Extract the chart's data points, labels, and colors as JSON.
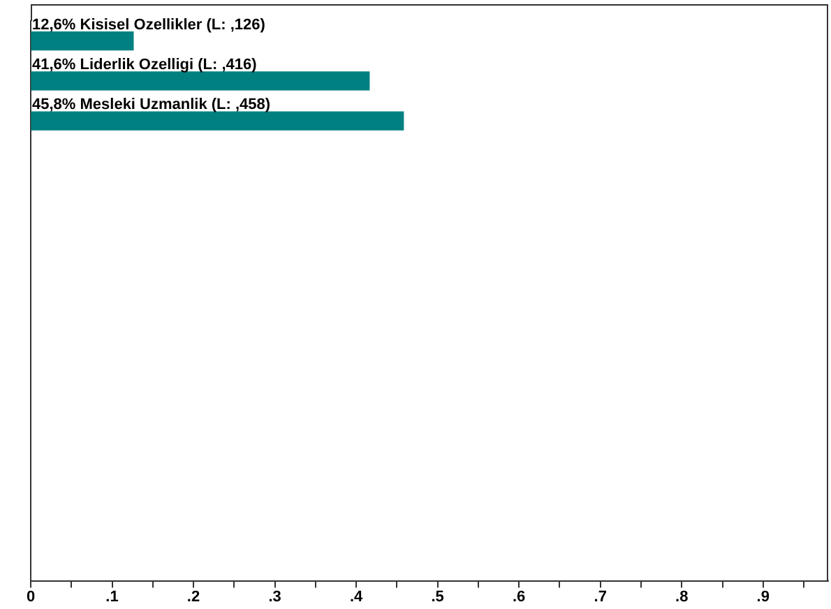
{
  "chart_data": {
    "type": "bar",
    "orientation": "horizontal",
    "categories": [
      null,
      null,
      null,
      null,
      null,
      null,
      null,
      null,
      null,
      null,
      null,
      null,
      null,
      null
    ],
    "values": [
      0.126,
      0.416,
      0.458,
      null,
      null,
      null,
      null,
      null,
      null,
      null,
      null,
      null,
      null,
      null
    ],
    "color": "#008080",
    "value_labels": [
      "12,6% Kisisel Ozellikler (L: ,126)",
      "41,6% Liderlik Ozelligi (L: ,416)",
      "45,8% Mesleki Uzmanlik (L: ,458)",
      null,
      null,
      null,
      null,
      null,
      null,
      null,
      null,
      null,
      null,
      null
    ],
    "xlim": [
      0,
      0.98
    ],
    "xticks": [
      {
        "value": 0,
        "label": "0"
      },
      {
        "value": 0.05,
        "label": null
      },
      {
        "value": 0.1,
        "label": ".1"
      },
      {
        "value": 0.15,
        "label": null
      },
      {
        "value": 0.2,
        "label": ".2"
      },
      {
        "value": 0.25,
        "label": null
      },
      {
        "value": 0.3,
        "label": ".3"
      },
      {
        "value": 0.35,
        "label": null
      },
      {
        "value": 0.4,
        "label": ".4"
      },
      {
        "value": 0.45,
        "label": null
      },
      {
        "value": 0.5,
        "label": ".5"
      },
      {
        "value": 0.55,
        "label": null
      },
      {
        "value": 0.6,
        "label": ".6"
      },
      {
        "value": 0.65,
        "label": null
      },
      {
        "value": 0.7,
        "label": ".7"
      },
      {
        "value": 0.75,
        "label": null
      },
      {
        "value": 0.8,
        "label": ".8"
      },
      {
        "value": 0.85,
        "label": null
      },
      {
        "value": 0.9,
        "label": ".9"
      },
      {
        "value": 0.95,
        "label": null
      }
    ],
    "grid": false,
    "legend": false
  }
}
